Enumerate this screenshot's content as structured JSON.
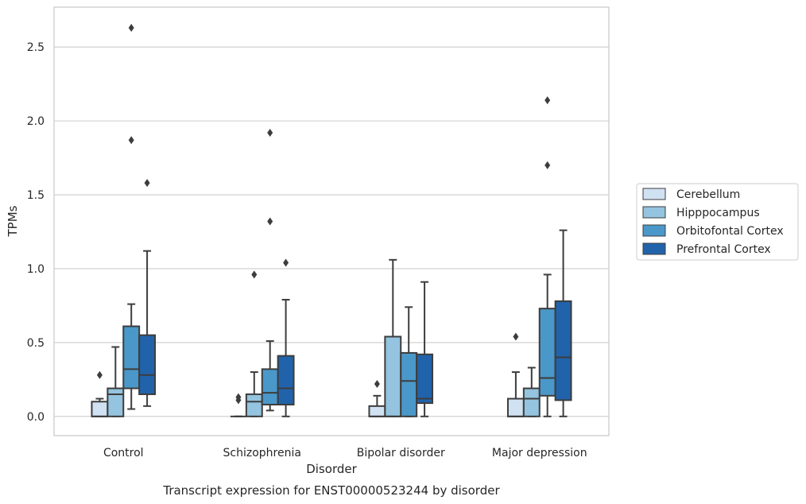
{
  "chart_data": {
    "type": "box",
    "title": "Transcript expression for ENST00000523244 by disorder",
    "xlabel": "Disorder",
    "ylabel": "TPMs",
    "ylim": [
      -0.13,
      2.77
    ],
    "yticks": [
      0.0,
      0.5,
      1.0,
      1.5,
      2.0,
      2.5
    ],
    "ytick_labels": [
      "0.0",
      "0.5",
      "1.0",
      "1.5",
      "2.0",
      "2.5"
    ],
    "categories": [
      "Control",
      "Schizophrenia",
      "Bipolar disorder",
      "Major depression"
    ],
    "grid": "horizontal",
    "legend_position": "right",
    "series": [
      {
        "name": "Cerebellum",
        "color": "#d0e1f2",
        "boxes": [
          {
            "whisker_low": 0.0,
            "q1": 0.0,
            "median": 0.0,
            "q3": 0.1,
            "whisker_high": 0.12,
            "outliers": [
              0.28
            ]
          },
          {
            "whisker_low": 0.0,
            "q1": 0.0,
            "median": 0.0,
            "q3": 0.0,
            "whisker_high": 0.0,
            "outliers": [
              0.11,
              0.13
            ]
          },
          {
            "whisker_low": 0.0,
            "q1": 0.0,
            "median": 0.0,
            "q3": 0.07,
            "whisker_high": 0.14,
            "outliers": [
              0.22
            ]
          },
          {
            "whisker_low": 0.0,
            "q1": 0.0,
            "median": 0.0,
            "q3": 0.12,
            "whisker_high": 0.3,
            "outliers": [
              0.54
            ]
          }
        ]
      },
      {
        "name": "Hipppocampus",
        "color": "#94c4df",
        "boxes": [
          {
            "whisker_low": 0.0,
            "q1": 0.0,
            "median": 0.15,
            "q3": 0.19,
            "whisker_high": 0.47,
            "outliers": []
          },
          {
            "whisker_low": 0.0,
            "q1": 0.0,
            "median": 0.1,
            "q3": 0.15,
            "whisker_high": 0.3,
            "outliers": [
              0.96
            ]
          },
          {
            "whisker_low": 0.0,
            "q1": 0.0,
            "median": 0.0,
            "q3": 0.54,
            "whisker_high": 1.06,
            "outliers": []
          },
          {
            "whisker_low": 0.0,
            "q1": 0.0,
            "median": 0.12,
            "q3": 0.19,
            "whisker_high": 0.33,
            "outliers": []
          }
        ]
      },
      {
        "name": "Orbitofontal Cortex",
        "color": "#4a98c9",
        "boxes": [
          {
            "whisker_low": 0.05,
            "q1": 0.19,
            "median": 0.32,
            "q3": 0.61,
            "whisker_high": 0.76,
            "outliers": [
              1.87,
              2.63
            ]
          },
          {
            "whisker_low": 0.04,
            "q1": 0.08,
            "median": 0.16,
            "q3": 0.32,
            "whisker_high": 0.51,
            "outliers": [
              1.32,
              1.92
            ]
          },
          {
            "whisker_low": 0.0,
            "q1": 0.0,
            "median": 0.24,
            "q3": 0.43,
            "whisker_high": 0.74,
            "outliers": []
          },
          {
            "whisker_low": 0.0,
            "q1": 0.14,
            "median": 0.26,
            "q3": 0.73,
            "whisker_high": 0.96,
            "outliers": [
              1.7,
              2.14
            ]
          }
        ]
      },
      {
        "name": "Prefrontal Cortex",
        "color": "#2163aa",
        "boxes": [
          {
            "whisker_low": 0.07,
            "q1": 0.15,
            "median": 0.28,
            "q3": 0.55,
            "whisker_high": 1.12,
            "outliers": [
              1.58
            ]
          },
          {
            "whisker_low": 0.0,
            "q1": 0.08,
            "median": 0.19,
            "q3": 0.41,
            "whisker_high": 0.79,
            "outliers": [
              1.04
            ]
          },
          {
            "whisker_low": 0.0,
            "q1": 0.09,
            "median": 0.12,
            "q3": 0.42,
            "whisker_high": 0.91,
            "outliers": []
          },
          {
            "whisker_low": 0.0,
            "q1": 0.11,
            "median": 0.4,
            "q3": 0.78,
            "whisker_high": 1.26,
            "outliers": []
          }
        ]
      }
    ]
  }
}
